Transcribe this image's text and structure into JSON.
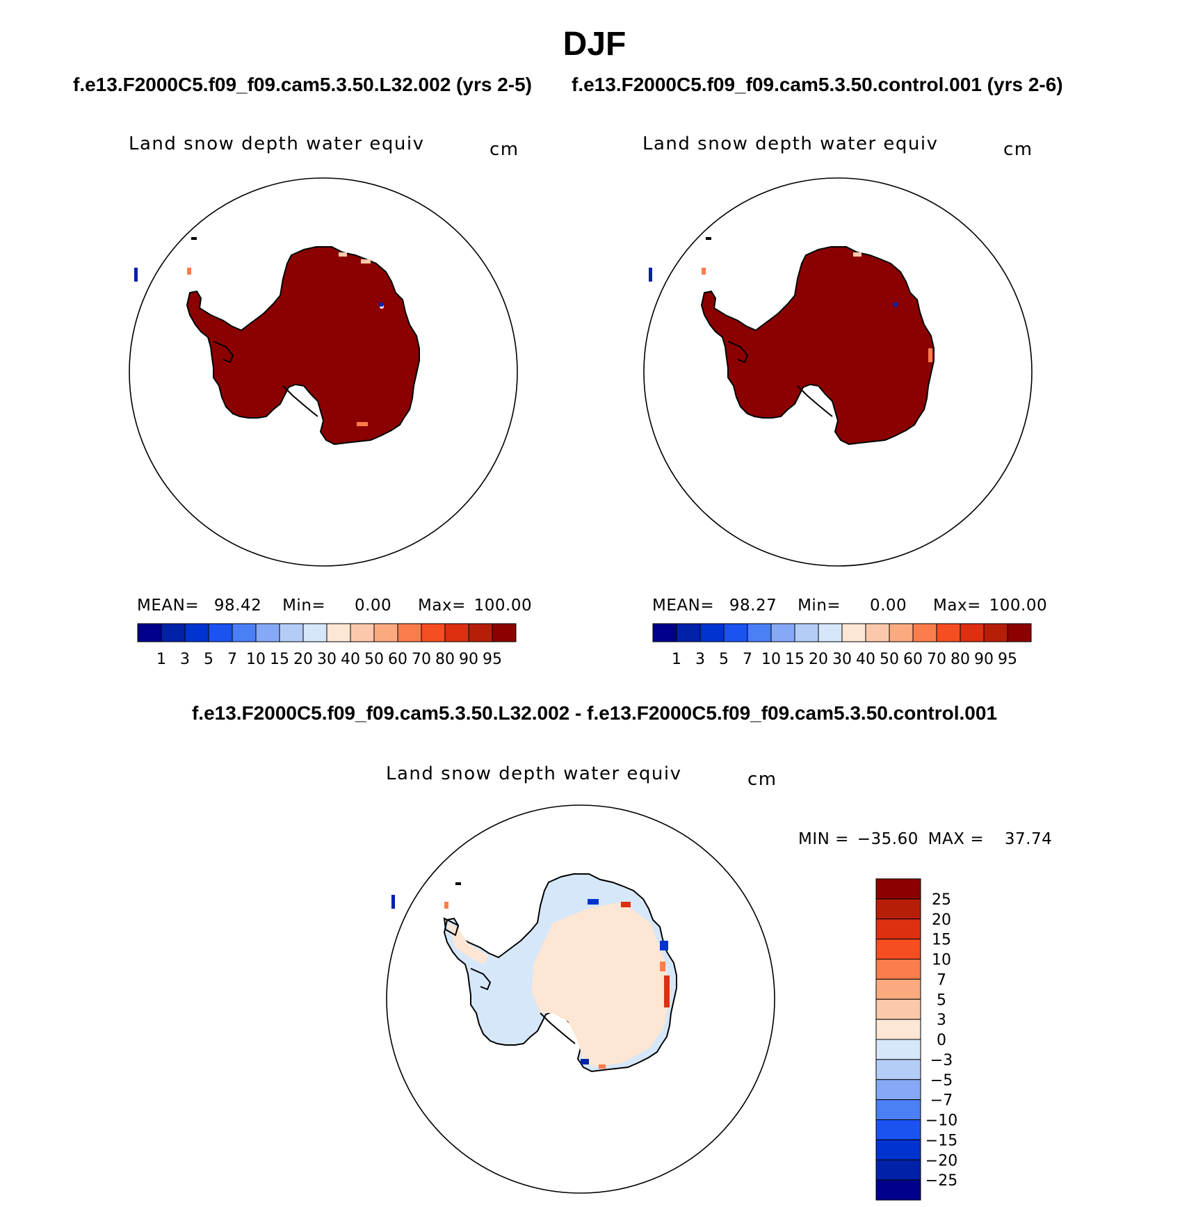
{
  "title": "DJF",
  "panels": [
    {
      "case_label": "f.e13.F2000C5.f09_f09.cam5.3.50.L32.002 (yrs 2-5)",
      "variable": "Land snow depth water equiv",
      "units": "cm",
      "stats": {
        "mean_label": "MEAN=",
        "mean": "98.42",
        "min_label": "Min=",
        "min": "0.00",
        "max_label": "Max=",
        "max": "100.00"
      }
    },
    {
      "case_label": "f.e13.F2000C5.f09_f09.cam5.3.50.control.001 (yrs 2-6)",
      "variable": "Land snow depth water equiv",
      "units": "cm",
      "stats": {
        "mean_label": "MEAN=",
        "mean": "98.27",
        "min_label": "Min=",
        "min": "0.00",
        "max_label": "Max=",
        "max": "100.00"
      }
    }
  ],
  "abs_colorbar": {
    "labels": [
      "1",
      "3",
      "5",
      "7",
      "10",
      "15",
      "20",
      "30",
      "40",
      "50",
      "60",
      "70",
      "80",
      "90",
      "95"
    ],
    "colors": [
      "#00008c",
      "#0022a8",
      "#0033d0",
      "#1a53f0",
      "#4a7ff5",
      "#86a9f7",
      "#b4cdf7",
      "#d6e7fa",
      "#fde6d3",
      "#fcc8ab",
      "#fbaa7f",
      "#fb7d4c",
      "#f54e20",
      "#dd3011",
      "#b71e08",
      "#8c0000"
    ]
  },
  "diff": {
    "title": "f.e13.F2000C5.f09_f09.cam5.3.50.L32.002 - f.e13.F2000C5.f09_f09.cam5.3.50.control.001",
    "variable": "Land snow depth water equiv",
    "units": "cm",
    "min_label": "MIN =",
    "min": "−35.60",
    "max_label": "MAX =",
    "max": "37.74",
    "colorbar": {
      "labels": [
        "25",
        "20",
        "15",
        "10",
        "7",
        "5",
        "3",
        "0",
        "−3",
        "−5",
        "−7",
        "−10",
        "−15",
        "−20",
        "−25"
      ],
      "colors": [
        "#8c0000",
        "#b71e08",
        "#dd3011",
        "#f54e20",
        "#fb7d4c",
        "#fbaa7f",
        "#fcc8ab",
        "#fde6d3",
        "#d6e7fa",
        "#b4cdf7",
        "#86a9f7",
        "#4a7ff5",
        "#1a53f0",
        "#0033d0",
        "#0022a8",
        "#00008c"
      ]
    }
  },
  "colors": {
    "land_abs": "#8b0000",
    "land_diff_pos": "#fde6d3",
    "land_diff_neg": "#d6e7fa",
    "outline": "#000000"
  }
}
